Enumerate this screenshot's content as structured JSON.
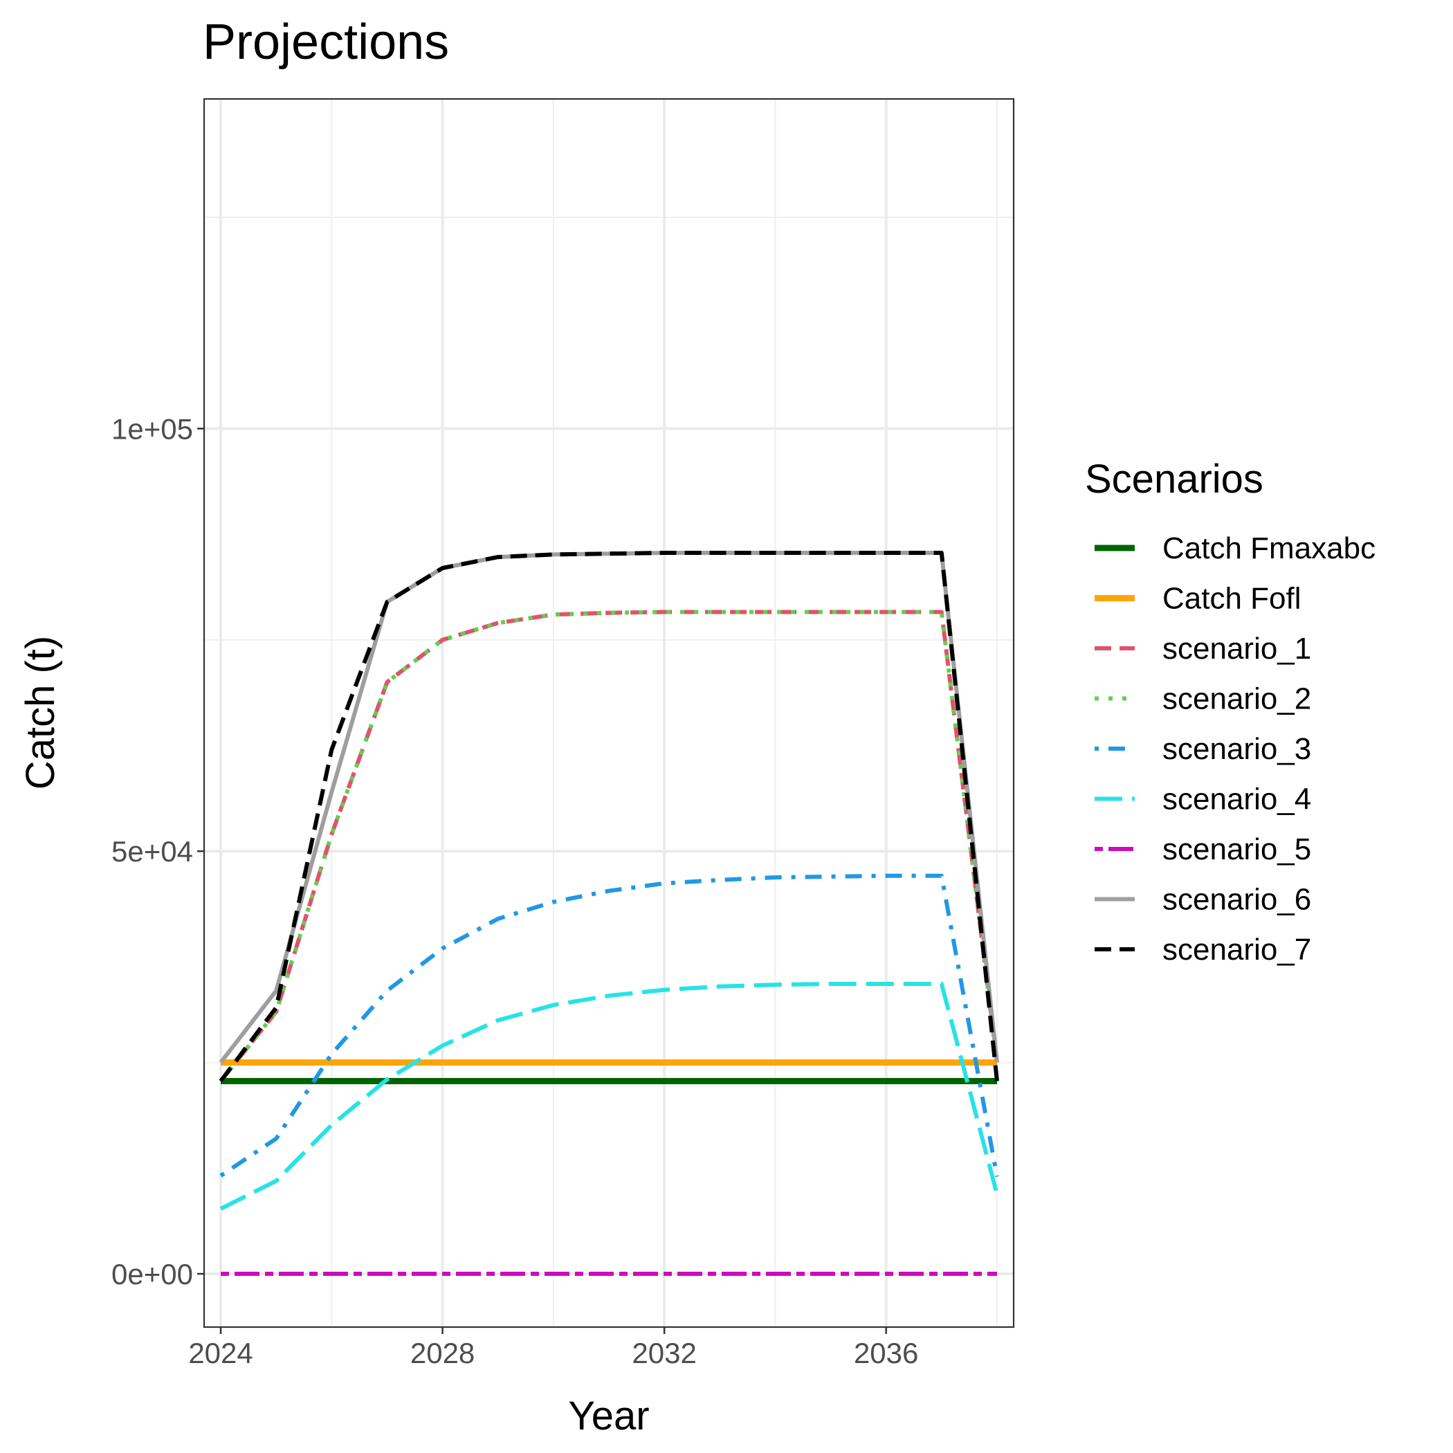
{
  "chart_data": {
    "type": "line",
    "title": "Projections",
    "xlabel": "Year",
    "ylabel": "Catch (t)",
    "xlim": [
      2023.7,
      2038.3
    ],
    "ylim": [
      -6300,
      139000
    ],
    "xticks": [
      2024,
      2028,
      2032,
      2036
    ],
    "xtick_labels": [
      "2024",
      "2028",
      "2032",
      "2036"
    ],
    "yticks": [
      0,
      50000,
      100000
    ],
    "ytick_labels": [
      "0e+00",
      "5e+04",
      "1e+05"
    ],
    "grid": true,
    "legend": {
      "title": "Scenarios",
      "position": "right"
    },
    "x": [
      2024,
      2025,
      2026,
      2027,
      2028,
      2029,
      2030,
      2031,
      2032,
      2033,
      2034,
      2035,
      2036,
      2037,
      2038
    ],
    "series": [
      {
        "name": "Catch Fmaxabc",
        "color": "#006400",
        "dash": "solid",
        "width": 9,
        "values": [
          22800,
          22800,
          22800,
          22800,
          22800,
          22800,
          22800,
          22800,
          22800,
          22800,
          22800,
          22800,
          22800,
          22800,
          22800
        ]
      },
      {
        "name": "Catch Fofl",
        "color": "#ffa500",
        "dash": "solid",
        "width": 9,
        "values": [
          25000,
          25000,
          25000,
          25000,
          25000,
          25000,
          25000,
          25000,
          25000,
          25000,
          25000,
          25000,
          25000,
          25000,
          25000
        ]
      },
      {
        "name": "scenario_1",
        "color": "#df536b",
        "dash": "dashed",
        "width": 6,
        "values": [
          22800,
          31000,
          52000,
          70000,
          75000,
          77000,
          78000,
          78200,
          78300,
          78300,
          78300,
          78300,
          78300,
          78300,
          25000
        ]
      },
      {
        "name": "scenario_2",
        "color": "#61d04f",
        "dash": "dotted",
        "width": 6,
        "values": [
          22800,
          31000,
          52000,
          70000,
          75000,
          77000,
          78000,
          78200,
          78300,
          78300,
          78300,
          78300,
          78300,
          78300,
          25000
        ]
      },
      {
        "name": "scenario_3",
        "color": "#2297e6",
        "dash": "dotdash",
        "width": 6,
        "values": [
          11600,
          16000,
          26000,
          33500,
          38500,
          42000,
          44000,
          45300,
          46200,
          46600,
          46900,
          47000,
          47100,
          47100,
          11500
        ]
      },
      {
        "name": "scenario_4",
        "color": "#28e2e5",
        "dash": "longdash",
        "width": 6,
        "values": [
          7700,
          11000,
          17600,
          23000,
          27000,
          30000,
          31800,
          32900,
          33600,
          34000,
          34200,
          34300,
          34300,
          34300,
          9400
        ]
      },
      {
        "name": "scenario_5",
        "color": "#cd0bbc",
        "dash": "twodash",
        "width": 6,
        "values": [
          0,
          0,
          0,
          0,
          0,
          0,
          0,
          0,
          0,
          0,
          0,
          0,
          0,
          0,
          0
        ]
      },
      {
        "name": "scenario_6",
        "color": "#9e9e9e",
        "dash": "solid",
        "width": 6,
        "values": [
          25000,
          33500,
          57000,
          79500,
          83500,
          84800,
          85100,
          85200,
          85300,
          85300,
          85300,
          85300,
          85300,
          85300,
          25000
        ]
      },
      {
        "name": "scenario_7",
        "color": "#000000",
        "dash": "dashed",
        "width": 6,
        "values": [
          22800,
          31500,
          62000,
          79500,
          83500,
          84800,
          85100,
          85200,
          85300,
          85300,
          85300,
          85300,
          85300,
          85300,
          22800
        ]
      }
    ]
  }
}
